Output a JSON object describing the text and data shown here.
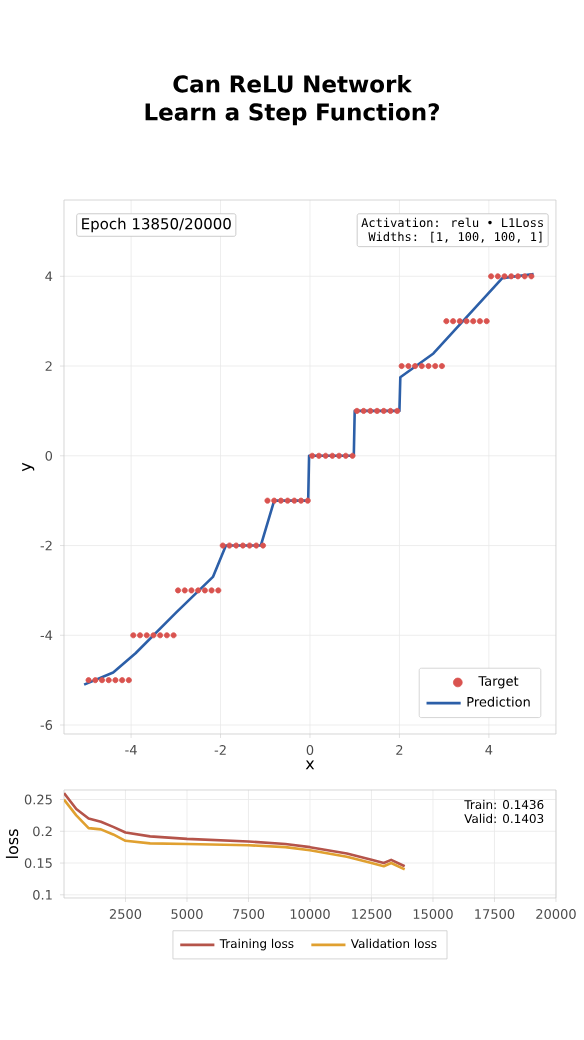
{
  "chart_data": [
    {
      "type": "line",
      "title": "Can ReLU Network Learn a Step Function?",
      "xlabel": "x",
      "ylabel": "y",
      "xlim": [
        -5.5,
        5.5
      ],
      "ylim": [
        -6.2,
        5.7
      ],
      "xticks": [
        -4,
        -2,
        0,
        2,
        4
      ],
      "yticks": [
        -6,
        -4,
        -2,
        0,
        2,
        4
      ],
      "grid": true,
      "legend": "bottom right",
      "annotations": [
        "Epoch 13850/20000",
        "Activation: relu • L1Loss",
        "Widths: [1, 100, 100, 1]"
      ],
      "series": [
        {
          "name": "Target",
          "type": "scatter",
          "color": "#d9534f",
          "x": [
            -4.95,
            -4.8,
            -4.65,
            -4.5,
            -4.35,
            -4.2,
            -4.05,
            -3.95,
            -3.8,
            -3.65,
            -3.5,
            -3.35,
            -3.2,
            -3.05,
            -2.95,
            -2.8,
            -2.65,
            -2.5,
            -2.35,
            -2.2,
            -2.05,
            -1.95,
            -1.8,
            -1.65,
            -1.5,
            -1.35,
            -1.2,
            -1.05,
            -0.95,
            -0.8,
            -0.65,
            -0.5,
            -0.35,
            -0.2,
            -0.05,
            0.05,
            0.2,
            0.35,
            0.5,
            0.65,
            0.8,
            0.95,
            1.05,
            1.2,
            1.35,
            1.5,
            1.65,
            1.8,
            1.95,
            2.05,
            2.2,
            2.35,
            2.5,
            2.65,
            2.8,
            2.95,
            3.05,
            3.2,
            3.35,
            3.5,
            3.65,
            3.8,
            3.95,
            4.05,
            4.2,
            4.35,
            4.5,
            4.65,
            4.8,
            4.95
          ],
          "values": [
            -5,
            -5,
            -5,
            -5,
            -5,
            -5,
            -5,
            -4,
            -4,
            -4,
            -4,
            -4,
            -4,
            -4,
            -3,
            -3,
            -3,
            -3,
            -3,
            -3,
            -3,
            -2,
            -2,
            -2,
            -2,
            -2,
            -2,
            -2,
            -1,
            -1,
            -1,
            -1,
            -1,
            -1,
            -1,
            0,
            0,
            0,
            0,
            0,
            0,
            0,
            1,
            1,
            1,
            1,
            1,
            1,
            1,
            2,
            2,
            2,
            2,
            2,
            2,
            2,
            3,
            3,
            3,
            3,
            3,
            3,
            3,
            4,
            4,
            4,
            4,
            4,
            4,
            4
          ]
        },
        {
          "name": "Prediction",
          "type": "line",
          "color": "#2c5fa8",
          "x": [
            -5.05,
            -4.4,
            -3.9,
            -3.0,
            -2.17,
            -1.88,
            -1.1,
            -0.8,
            -0.04,
            -0.02,
            0.98,
            1.0,
            2.0,
            2.02,
            2.76,
            4.3,
            5.0
          ],
          "values": [
            -5.1,
            -4.83,
            -4.4,
            -3.5,
            -2.7,
            -2.0,
            -2.0,
            -1.0,
            -1.0,
            0.0,
            0.0,
            1.0,
            1.0,
            1.75,
            2.28,
            3.96,
            4.05
          ]
        }
      ]
    },
    {
      "type": "line",
      "ylabel": "loss",
      "xlim": [
        0,
        20000
      ],
      "ylim": [
        0.095,
        0.265
      ],
      "xticks": [
        2500,
        5000,
        7500,
        10000,
        12500,
        15000,
        17500,
        20000
      ],
      "yticks": [
        0.1,
        0.15,
        0.2,
        0.25
      ],
      "grid": true,
      "legend": "bottom",
      "annotations": [
        "Train: 0.1436",
        "Valid: 0.1403"
      ],
      "series": [
        {
          "name": "Training loss",
          "color": "#b5544a",
          "x": [
            0,
            500,
            1000,
            1500,
            2000,
            2500,
            3500,
            5000,
            7500,
            9000,
            10000,
            11500,
            12500,
            13000,
            13300,
            13850
          ],
          "values": [
            0.26,
            0.235,
            0.22,
            0.215,
            0.207,
            0.198,
            0.192,
            0.188,
            0.184,
            0.18,
            0.175,
            0.165,
            0.155,
            0.15,
            0.155,
            0.145
          ]
        },
        {
          "name": "Validation loss",
          "color": "#e0a030",
          "x": [
            0,
            500,
            1000,
            1500,
            2000,
            2500,
            3500,
            5000,
            7500,
            9000,
            10000,
            11500,
            12500,
            13000,
            13300,
            13850
          ],
          "values": [
            0.25,
            0.225,
            0.205,
            0.203,
            0.195,
            0.185,
            0.181,
            0.18,
            0.178,
            0.175,
            0.17,
            0.16,
            0.15,
            0.145,
            0.15,
            0.14
          ]
        }
      ]
    }
  ]
}
